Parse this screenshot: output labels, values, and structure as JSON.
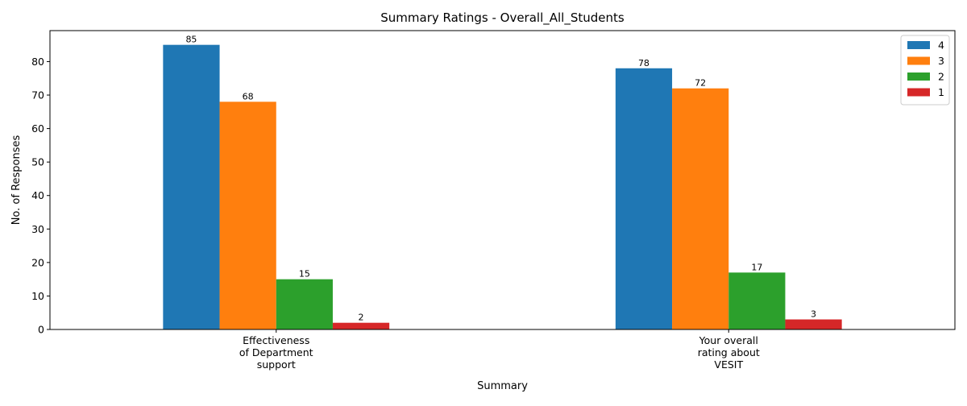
{
  "chart_data": {
    "type": "bar",
    "title": "Summary Ratings - Overall_All_Students",
    "xlabel": "Summary",
    "ylabel": "No. of Responses",
    "categories": [
      [
        "Effectiveness",
        "of Department",
        "support"
      ],
      [
        "Your overall",
        "rating about",
        "VESIT"
      ]
    ],
    "series": [
      {
        "name": "4",
        "color": "#1f77b4",
        "values": [
          85,
          78
        ]
      },
      {
        "name": "3",
        "color": "#ff7f0e",
        "values": [
          68,
          72
        ]
      },
      {
        "name": "2",
        "color": "#2ca02c",
        "values": [
          15,
          17
        ]
      },
      {
        "name": "1",
        "color": "#d62728",
        "values": [
          2,
          3
        ]
      }
    ],
    "ylim": [
      0,
      89.25
    ],
    "yticks": [
      0,
      10,
      20,
      30,
      40,
      50,
      60,
      70,
      80
    ],
    "grid": false,
    "legend_position": "top-right",
    "data_labels": true
  }
}
